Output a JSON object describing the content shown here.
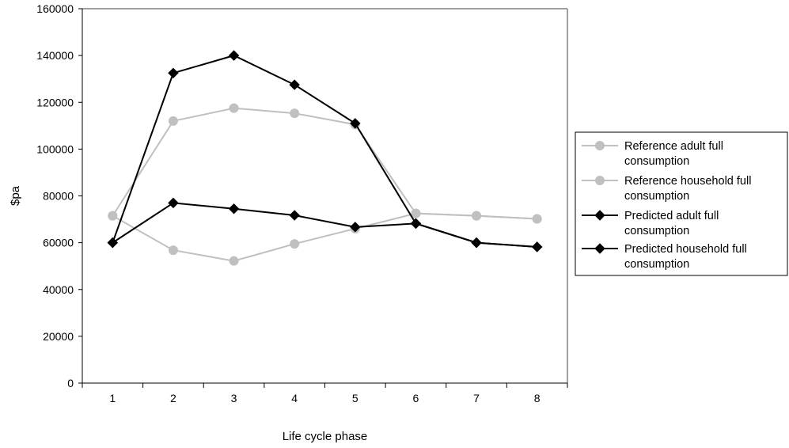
{
  "chart_data": {
    "type": "line",
    "title": "",
    "xlabel": "Life cycle phase",
    "ylabel": "$pa",
    "categories": [
      "1",
      "2",
      "3",
      "4",
      "5",
      "6",
      "7",
      "8"
    ],
    "ylim": [
      0,
      160000
    ],
    "yticks": [
      "0",
      "20000",
      "40000",
      "60000",
      "80000",
      "100000",
      "120000",
      "140000",
      "160000"
    ],
    "grid": false,
    "legend_position": "right",
    "series": [
      {
        "name": "Reference adult full consumption",
        "name_lines": [
          "Reference adult full",
          "consumption"
        ],
        "color": "#c0c0c0",
        "marker": "circle",
        "values": [
          71500,
          56800,
          52200,
          59500,
          66000,
          72500,
          71500,
          70200
        ]
      },
      {
        "name": "Reference household full consumption",
        "name_lines": [
          "Reference household full",
          "consumption"
        ],
        "color": "#c0c0c0",
        "marker": "circle",
        "values": [
          71500,
          112000,
          117500,
          115300,
          110500,
          72500,
          71500,
          70200
        ]
      },
      {
        "name": "Predicted adult full consumption",
        "name_lines": [
          "Predicted adult full",
          "consumption"
        ],
        "color": "#000000",
        "marker": "diamond",
        "values": [
          60000,
          77000,
          74500,
          71700,
          66700,
          68200,
          60000,
          58200
        ]
      },
      {
        "name": "Predicted household full consumption",
        "name_lines": [
          "Predicted household full",
          "consumption"
        ],
        "color": "#000000",
        "marker": "diamond",
        "values": [
          60000,
          132500,
          140000,
          127500,
          111000,
          68200,
          60000,
          58200
        ]
      }
    ]
  }
}
